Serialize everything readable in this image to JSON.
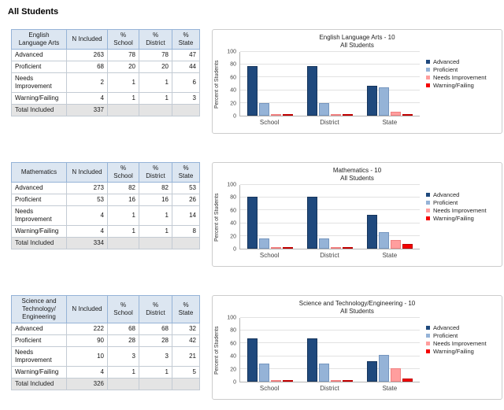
{
  "page": {
    "title": "All Students"
  },
  "colors": {
    "series_fill": [
      "#1F497D",
      "#95B3D7",
      "#FF9E9E",
      "#F40000"
    ],
    "series_border": [
      "#16355C",
      "#7596BF",
      "#F08080",
      "#C00000"
    ],
    "table_header_bg": "#DCE6F1",
    "table_header_border": "#95B3D7",
    "total_row_bg": "#E4E4E4",
    "chart_border": "#CCCCCC"
  },
  "legend": [
    "Advanced",
    "Proficient",
    "Needs Improvement",
    "Warning/Failing"
  ],
  "sections": [
    {
      "table": {
        "subject": "English Language Arts",
        "columns": [
          "N Included",
          "% School",
          "% District",
          "% State"
        ],
        "rows": [
          {
            "label": "Advanced",
            "values": [
              263,
              78,
              78,
              47
            ]
          },
          {
            "label": "Proficient",
            "values": [
              68,
              20,
              20,
              44
            ]
          },
          {
            "label": "Needs Improvement",
            "values": [
              2,
              1,
              1,
              6
            ]
          },
          {
            "label": "Warning/Failing",
            "values": [
              4,
              1,
              1,
              3
            ]
          }
        ],
        "total_label": "Total Included",
        "total_value": 337
      }
    },
    {
      "table": {
        "subject": "Mathematics",
        "columns": [
          "N Included",
          "% School",
          "% District",
          "% State"
        ],
        "rows": [
          {
            "label": "Advanced",
            "values": [
              273,
              82,
              82,
              53
            ]
          },
          {
            "label": "Proficient",
            "values": [
              53,
              16,
              16,
              26
            ]
          },
          {
            "label": "Needs Improvement",
            "values": [
              4,
              1,
              1,
              14
            ]
          },
          {
            "label": "Warning/Failing",
            "values": [
              4,
              1,
              1,
              8
            ]
          }
        ],
        "total_label": "Total Included",
        "total_value": 334
      }
    },
    {
      "table": {
        "subject": "Science and Technology/ Engineering",
        "columns": [
          "N Included",
          "% School",
          "% District",
          "% State"
        ],
        "rows": [
          {
            "label": "Advanced",
            "values": [
              222,
              68,
              68,
              32
            ]
          },
          {
            "label": "Proficient",
            "values": [
              90,
              28,
              28,
              42
            ]
          },
          {
            "label": "Needs Improvement",
            "values": [
              10,
              3,
              3,
              21
            ]
          },
          {
            "label": "Warning/Failing",
            "values": [
              4,
              1,
              1,
              5
            ]
          }
        ],
        "total_label": "Total Included",
        "total_value": 326
      }
    }
  ],
  "chart_data": [
    {
      "type": "bar",
      "title": "English Language Arts - 10",
      "subtitle": "All Students",
      "ylabel": "Percent of Students",
      "ylim": [
        0,
        100
      ],
      "yticks": [
        0,
        20,
        40,
        60,
        80,
        100
      ],
      "grid": true,
      "legend_position": "right",
      "categories": [
        "School",
        "District",
        "State"
      ],
      "series": [
        {
          "name": "Advanced",
          "values": [
            78,
            78,
            47
          ]
        },
        {
          "name": "Proficient",
          "values": [
            20,
            20,
            44
          ]
        },
        {
          "name": "Needs Improvement",
          "values": [
            1,
            1,
            6
          ]
        },
        {
          "name": "Warning/Failing",
          "values": [
            1,
            1,
            3
          ]
        }
      ]
    },
    {
      "type": "bar",
      "title": "Mathematics - 10",
      "subtitle": "All Students",
      "ylabel": "Percent of Students",
      "ylim": [
        0,
        100
      ],
      "yticks": [
        0,
        20,
        40,
        60,
        80,
        100
      ],
      "grid": true,
      "legend_position": "right",
      "categories": [
        "School",
        "District",
        "State"
      ],
      "series": [
        {
          "name": "Advanced",
          "values": [
            82,
            82,
            53
          ]
        },
        {
          "name": "Proficient",
          "values": [
            16,
            16,
            26
          ]
        },
        {
          "name": "Needs Improvement",
          "values": [
            1,
            1,
            14
          ]
        },
        {
          "name": "Warning/Failing",
          "values": [
            1,
            1,
            8
          ]
        }
      ]
    },
    {
      "type": "bar",
      "title": "Science and Technology/Engineering - 10",
      "subtitle": "All Students",
      "ylabel": "Percent of Students",
      "ylim": [
        0,
        100
      ],
      "yticks": [
        0,
        20,
        40,
        60,
        80,
        100
      ],
      "grid": true,
      "legend_position": "right",
      "categories": [
        "School",
        "District",
        "State"
      ],
      "series": [
        {
          "name": "Advanced",
          "values": [
            68,
            68,
            32
          ]
        },
        {
          "name": "Proficient",
          "values": [
            28,
            28,
            42
          ]
        },
        {
          "name": "Needs Improvement",
          "values": [
            3,
            3,
            21
          ]
        },
        {
          "name": "Warning/Failing",
          "values": [
            1,
            1,
            5
          ]
        }
      ]
    }
  ]
}
